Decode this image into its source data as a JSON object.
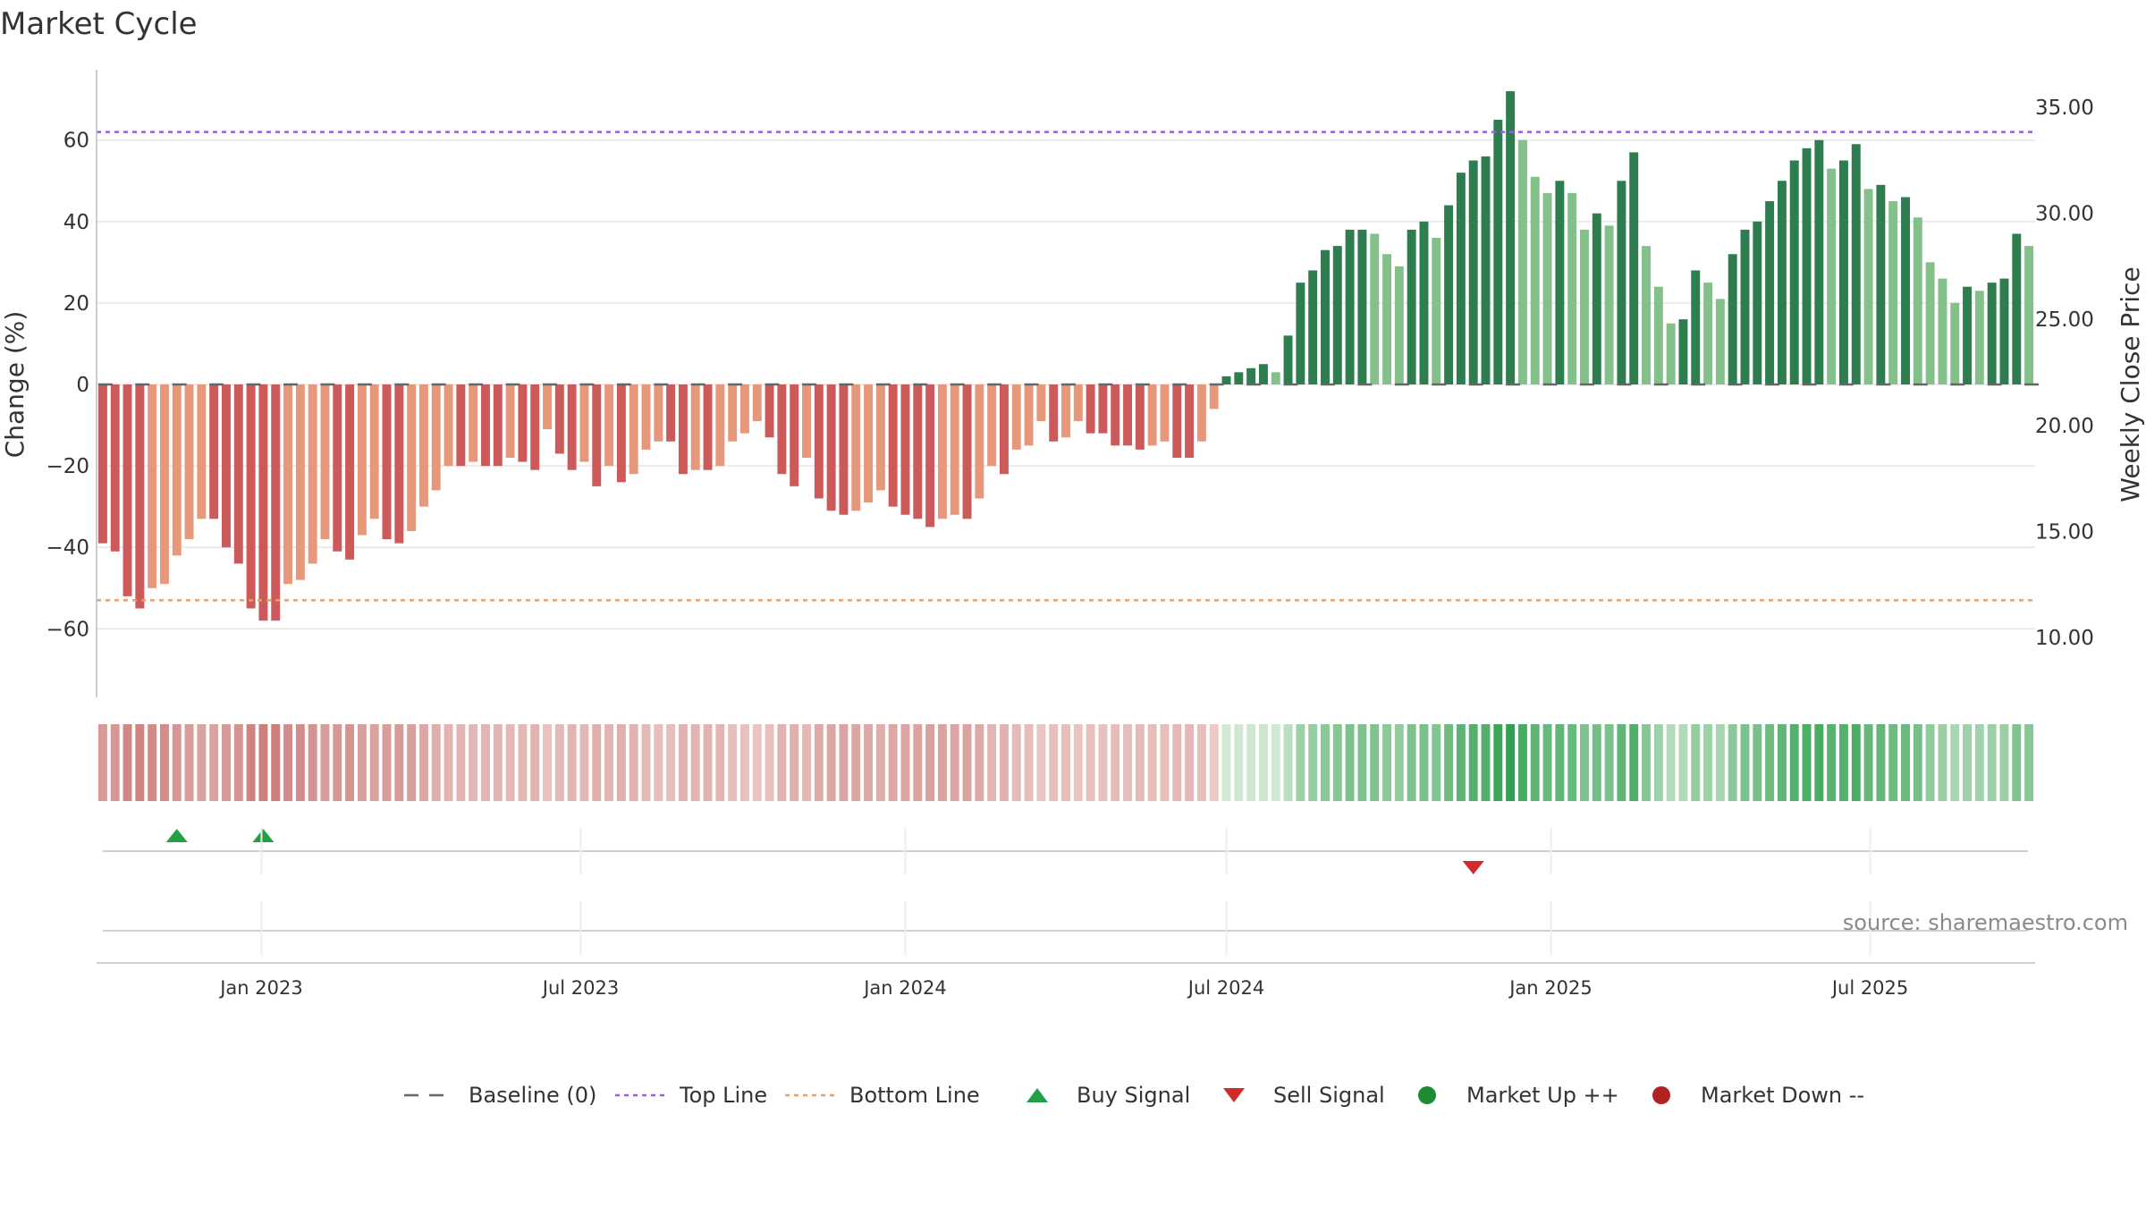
{
  "chart_data": {
    "type": "bar",
    "title": "Market Cycle",
    "ylabel_left": "Change (%)",
    "ylabel_right": "Weekly Close Price",
    "ylim_left": [
      -77,
      77
    ],
    "y_ticks_left": [
      60,
      40,
      20,
      0,
      -20,
      -40,
      -60
    ],
    "y_tick_labels_left": [
      "60",
      "40",
      "20",
      "0",
      "−20",
      "−40",
      "−60"
    ],
    "y_ticks_right": [
      35,
      30,
      25,
      20,
      15,
      10
    ],
    "y_tick_labels_right": [
      "35.00",
      "30.00",
      "25.00",
      "20.00",
      "15.00",
      "10.00"
    ],
    "top_line": 62,
    "bottom_line": -53,
    "x_tick_labels": [
      "Jan 2023",
      "Jul 2023",
      "Jan 2024",
      "Jul 2024",
      "Jan 2025",
      "Jul 2025"
    ],
    "x_tick_dates": [
      "2023-01-01",
      "2023-07-01",
      "2024-01-01",
      "2024-07-01",
      "2025-01-01",
      "2025-07-01"
    ],
    "first_week": "2022-10-03",
    "week_count": 158,
    "values": [
      -39,
      -41,
      -52,
      -55,
      -50,
      -49,
      -42,
      -38,
      -33,
      -33,
      -40,
      -44,
      -55,
      -58,
      -58,
      -49,
      -48,
      -44,
      -38,
      -41,
      -43,
      -37,
      -33,
      -38,
      -39,
      -36,
      -30,
      -26,
      -20,
      -20,
      -19,
      -20,
      -20,
      -18,
      -19,
      -21,
      -11,
      -17,
      -21,
      -19,
      -25,
      -20,
      -24,
      -22,
      -16,
      -14,
      -14,
      -22,
      -21,
      -21,
      -20,
      -14,
      -12,
      -9,
      -13,
      -22,
      -25,
      -18,
      -28,
      -31,
      -32,
      -31,
      -29,
      -26,
      -30,
      -32,
      -33,
      -35,
      -33,
      -32,
      -33,
      -28,
      -20,
      -22,
      -16,
      -15,
      -9,
      -14,
      -13,
      -9,
      -12,
      -12,
      -15,
      -15,
      -16,
      -15,
      -14,
      -18,
      -18,
      -14,
      -6,
      2,
      3,
      4,
      5,
      3,
      12,
      25,
      28,
      33,
      34,
      38,
      38,
      37,
      32,
      29,
      38,
      40,
      36,
      44,
      52,
      55,
      56,
      65,
      72,
      60,
      51,
      47,
      50,
      47,
      38,
      42,
      39,
      50,
      57,
      34,
      24,
      15,
      16,
      28,
      25,
      21,
      32,
      38,
      40,
      45,
      50,
      55,
      58,
      60,
      53,
      55,
      59,
      48,
      49,
      45,
      46,
      41,
      30,
      26,
      20,
      24,
      23,
      25,
      26,
      37,
      34
    ],
    "buy_signals": [
      "2022-11-14",
      "2023-01-02"
    ],
    "sell_signals": [
      "2024-11-18"
    ],
    "legend": [
      "Baseline (0)",
      "Top Line",
      "Bottom Line",
      "Buy Signal",
      "Sell Signal",
      "Market Up ++",
      "Market Down --"
    ],
    "legend_placement": "bottom-center",
    "colors": {
      "strong_down": "#cc5a5a",
      "weak_down": "#e8987a",
      "strong_up": "#2e7d4f",
      "weak_up": "#84c08a",
      "top_line": "#9b5fd0",
      "bottom_line": "#e0a070",
      "baseline": "#666666",
      "buy": "#23a046",
      "sell": "#d22a2a",
      "market_up": "#1e8c32",
      "market_down": "#b22222"
    }
  },
  "source": "source: sharemaestro.com"
}
